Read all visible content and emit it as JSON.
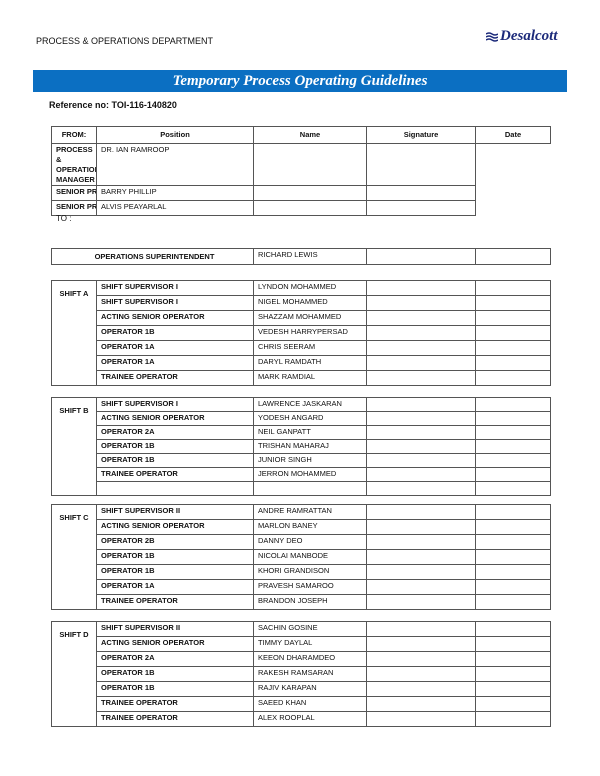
{
  "header": {
    "department": "PROCESS & OPERATIONS DEPARTMENT",
    "logo_text": "Desalcott"
  },
  "title": "Temporary Process Operating Guidelines",
  "reference": "Reference no: TOI-116-140820",
  "columns": {
    "position": "Position",
    "name": "Name",
    "signature": "Signature",
    "date": "Date"
  },
  "from": {
    "label": "FROM:",
    "rows": [
      {
        "position": "PROCESS & OPERATIONS MANAGER",
        "name": "DR. IAN RAMROOP"
      },
      {
        "position": "SENIOR PROCESS ENGINEER",
        "name": "BARRY PHILLIP"
      },
      {
        "position": "SENIOR PROCESS ENGINEER",
        "name": "ALVIS PEAYARLAL"
      }
    ]
  },
  "to_label": "TO :",
  "superintendent": {
    "position": "OPERATIONS SUPERINTENDENT",
    "name": "RICHARD LEWIS"
  },
  "shifts": [
    {
      "label": "SHIFT A",
      "rows": [
        {
          "position": "SHIFT SUPERVISOR I",
          "name": "LYNDON MOHAMMED"
        },
        {
          "position": "SHIFT SUPERVISOR I",
          "name": "NIGEL MOHAMMED"
        },
        {
          "position": "ACTING SENIOR OPERATOR",
          "name": "SHAZZAM MOHAMMED"
        },
        {
          "position": "OPERATOR 1B",
          "name": "VEDESH HARRYPERSAD"
        },
        {
          "position": "OPERATOR 1A",
          "name": "CHRIS SEERAM"
        },
        {
          "position": "OPERATOR 1A",
          "name": "DARYL RAMDATH"
        },
        {
          "position": "TRAINEE OPERATOR",
          "name": "MARK RAMDIAL"
        }
      ]
    },
    {
      "label": "SHIFT B",
      "rows": [
        {
          "position": "SHIFT SUPERVISOR I",
          "name": "LAWRENCE JASKARAN"
        },
        {
          "position": "ACTING SENIOR OPERATOR",
          "name": "YODESH ANGARD"
        },
        {
          "position": "OPERATOR 2A",
          "name": "NEIL GANPATT"
        },
        {
          "position": "OPERATOR 1B",
          "name": "TRISHAN MAHARAJ"
        },
        {
          "position": "OPERATOR 1B",
          "name": "JUNIOR SINGH"
        },
        {
          "position": "TRAINEE OPERATOR",
          "name": "JERRON MOHAMMED"
        },
        {
          "position": "",
          "name": ""
        }
      ]
    },
    {
      "label": "SHIFT C",
      "rows": [
        {
          "position": "SHIFT SUPERVISOR II",
          "name": "ANDRE RAMRATTAN"
        },
        {
          "position": "ACTING SENIOR OPERATOR",
          "name": "MARLON BANEY"
        },
        {
          "position": "OPERATOR 2B",
          "name": "DANNY DEO"
        },
        {
          "position": "OPERATOR 1B",
          "name": "NICOLAI MANBODE"
        },
        {
          "position": "OPERATOR 1B",
          "name": "KHORI GRANDISON"
        },
        {
          "position": "OPERATOR 1A",
          "name": "PRAVESH SAMAROO"
        },
        {
          "position": "TRAINEE OPERATOR",
          "name": "BRANDON JOSEPH"
        }
      ]
    },
    {
      "label": "SHIFT D",
      "rows": [
        {
          "position": "SHIFT SUPERVISOR II",
          "name": "SACHIN GOSINE"
        },
        {
          "position": "ACTING SENIOR OPERATOR",
          "name": "TIMMY DAYLAL"
        },
        {
          "position": "OPERATOR 2A",
          "name": "KEEON DHARAMDEO"
        },
        {
          "position": "OPERATOR 1B",
          "name": "RAKESH RAMSARAN"
        },
        {
          "position": "OPERATOR 1B",
          "name": "RAJIV KARAPAN"
        },
        {
          "position": "TRAINEE OPERATOR",
          "name": "SAEED KHAN"
        },
        {
          "position": "TRAINEE OPERATOR",
          "name": "ALEX ROOPLAL"
        }
      ]
    }
  ],
  "colors": {
    "title_bar": "#0b6fc2",
    "logo": "#1c2a7a"
  }
}
